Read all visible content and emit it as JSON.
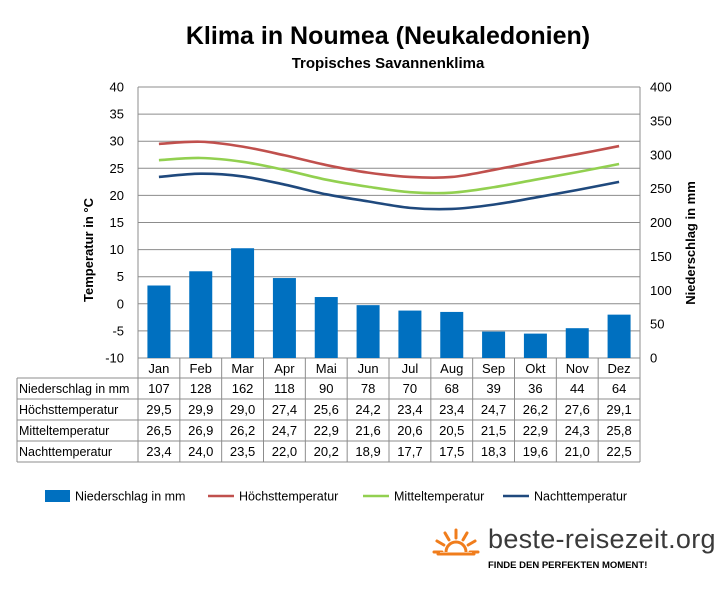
{
  "colors": {
    "precipitation": "#0070c0",
    "max_temp": "#c0504d",
    "mean_temp": "#92d050",
    "night_temp": "#1f497d",
    "brand_orange": "#f07d1c"
  },
  "brand": {
    "name": "beste-reisezeit.org",
    "slogan": "FINDE DEN PERFEKTEN MOMENT!",
    "logo_icon": "sun-logo-icon"
  },
  "chart_data": {
    "type": "bar",
    "title": "Klima in Noumea (Neukaledonien)",
    "subtitle": "Tropisches Savannenklima",
    "ylabel": "Temperatur in °C",
    "y2label": "Niederschlag in mm",
    "ylim": [
      -10,
      40
    ],
    "y2lim": [
      0,
      400
    ],
    "yticks": [
      "40",
      "35",
      "30",
      "25",
      "20",
      "15",
      "10",
      "5",
      "0",
      "-5",
      "-10"
    ],
    "y2ticks": [
      "400",
      "350",
      "300",
      "250",
      "200",
      "150",
      "100",
      "50",
      "0"
    ],
    "grid": true,
    "legend_position": "bottom",
    "categories": [
      "Jan",
      "Feb",
      "Mar",
      "Apr",
      "Mai",
      "Jun",
      "Jul",
      "Aug",
      "Sep",
      "Okt",
      "Nov",
      "Dez"
    ],
    "series": [
      {
        "name": "Niederschlag in mm",
        "kind": "bar",
        "axis": "right",
        "values": [
          107,
          128,
          162,
          118,
          90,
          78,
          70,
          68,
          39,
          36,
          44,
          64
        ],
        "labels": [
          "107",
          "128",
          "162",
          "118",
          "90",
          "78",
          "70",
          "68",
          "39",
          "36",
          "44",
          "64"
        ]
      },
      {
        "name": "Höchsttemperatur",
        "kind": "line",
        "axis": "left",
        "values": [
          29.5,
          29.9,
          29.0,
          27.4,
          25.6,
          24.2,
          23.4,
          23.4,
          24.7,
          26.2,
          27.6,
          29.1
        ],
        "labels": [
          "29,5",
          "29,9",
          "29,0",
          "27,4",
          "25,6",
          "24,2",
          "23,4",
          "23,4",
          "24,7",
          "26,2",
          "27,6",
          "29,1"
        ]
      },
      {
        "name": "Mitteltemperatur",
        "kind": "line",
        "axis": "left",
        "values": [
          26.5,
          26.9,
          26.2,
          24.7,
          22.9,
          21.6,
          20.6,
          20.5,
          21.5,
          22.9,
          24.3,
          25.8
        ],
        "labels": [
          "26,5",
          "26,9",
          "26,2",
          "24,7",
          "22,9",
          "21,6",
          "20,6",
          "20,5",
          "21,5",
          "22,9",
          "24,3",
          "25,8"
        ]
      },
      {
        "name": "Nachttemperatur",
        "kind": "line",
        "axis": "left",
        "values": [
          23.4,
          24.0,
          23.5,
          22.0,
          20.2,
          18.9,
          17.7,
          17.5,
          18.3,
          19.6,
          21.0,
          22.5
        ],
        "labels": [
          "23,4",
          "24,0",
          "23,5",
          "22,0",
          "20,2",
          "18,9",
          "17,7",
          "17,5",
          "18,3",
          "19,6",
          "21,0",
          "22,5"
        ]
      }
    ]
  }
}
